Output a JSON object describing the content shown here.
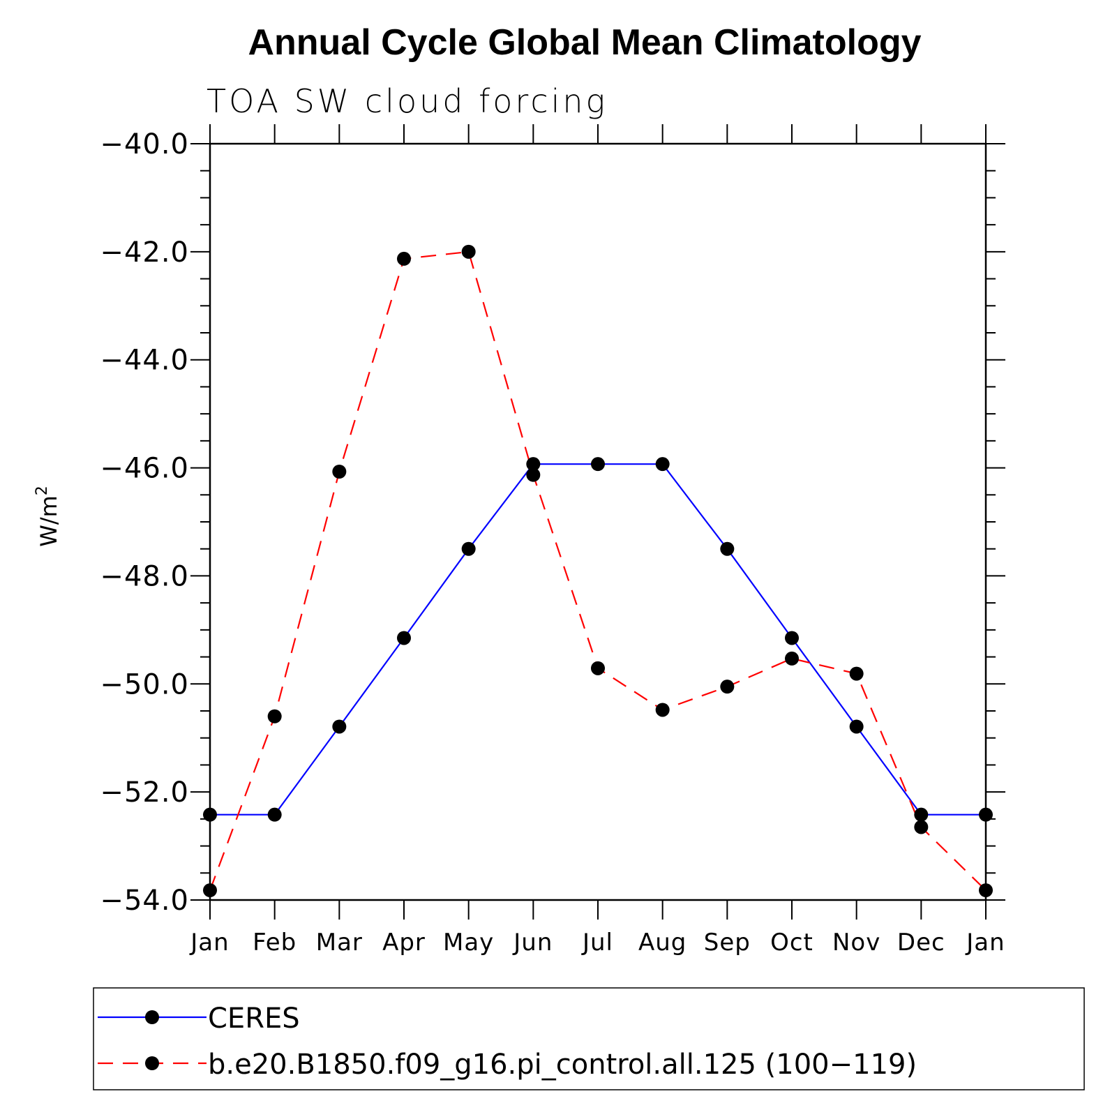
{
  "chart_data": {
    "type": "line",
    "title": "Annual Cycle Global Mean Climatology",
    "subtitle": "TOA SW cloud forcing",
    "ylabel": "W/m",
    "ylabel_superscript": "2",
    "categories": [
      "Jan",
      "Feb",
      "Mar",
      "Apr",
      "May",
      "Jun",
      "Jul",
      "Aug",
      "Sep",
      "Oct",
      "Nov",
      "Dec",
      "Jan"
    ],
    "ylim": [
      -54.0,
      -40.0
    ],
    "yticks": [
      -40.0,
      -42.0,
      -44.0,
      -46.0,
      -48.0,
      -50.0,
      -52.0,
      -54.0
    ],
    "ytick_labels": [
      "−40.0",
      "−42.0",
      "−44.0",
      "−46.0",
      "−48.0",
      "−50.0",
      "−52.0",
      "−54.0"
    ],
    "series": [
      {
        "name": "CERES",
        "color": "#0000ff",
        "dash": "solid",
        "values": [
          -52.42,
          -52.42,
          -50.79,
          -49.15,
          -47.5,
          -45.93,
          -45.93,
          -45.93,
          -47.5,
          -49.15,
          -50.79,
          -52.42,
          -52.42
        ]
      },
      {
        "name": "b.e20.B1850.f09_g16.pi_control.all.125 (100−119)",
        "color": "#ff0000",
        "dash": "dashed",
        "values": [
          -53.82,
          -50.6,
          -46.07,
          -42.13,
          -42.0,
          -46.13,
          -49.71,
          -50.48,
          -50.05,
          -49.53,
          -49.81,
          -52.65,
          -53.82
        ]
      }
    ],
    "legend_position": "bottom"
  }
}
